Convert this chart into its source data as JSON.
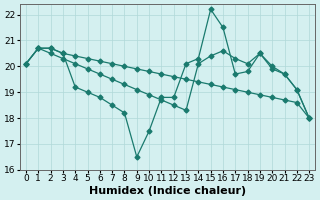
{
  "xlabel": "Humidex (Indice chaleur)",
  "ylabel": "",
  "xlim": [
    -0.5,
    23.5
  ],
  "ylim": [
    16,
    22.4
  ],
  "yticks": [
    16,
    17,
    18,
    19,
    20,
    21,
    22
  ],
  "xticks": [
    0,
    1,
    2,
    3,
    4,
    5,
    6,
    7,
    8,
    9,
    10,
    11,
    12,
    13,
    14,
    15,
    16,
    17,
    18,
    19,
    20,
    21,
    22,
    23
  ],
  "bg_color": "#d4f0f0",
  "line_color": "#1a7a6e",
  "grid_color": "#b0d8d8",
  "lines": [
    {
      "x": [
        0,
        1,
        2,
        3,
        4,
        5,
        6,
        7,
        8,
        9,
        10,
        11,
        12,
        13,
        14,
        15,
        16,
        17,
        18,
        19,
        20,
        21,
        22,
        23
      ],
      "y": [
        20.1,
        20.7,
        20.7,
        20.5,
        20.4,
        20.3,
        20.2,
        20.1,
        20.0,
        19.9,
        19.8,
        19.7,
        19.6,
        19.5,
        19.4,
        19.3,
        19.2,
        19.1,
        19.0,
        18.9,
        18.8,
        18.7,
        18.6,
        18.0
      ]
    },
    {
      "x": [
        0,
        1,
        2,
        3,
        4,
        5,
        6,
        7,
        8,
        9,
        10,
        11,
        12,
        13,
        14,
        15,
        16,
        17,
        18,
        19,
        20,
        21,
        22,
        23
      ],
      "y": [
        20.1,
        20.7,
        20.7,
        20.5,
        19.2,
        19.0,
        18.8,
        18.5,
        18.2,
        16.5,
        17.5,
        18.8,
        18.8,
        20.1,
        20.3,
        22.2,
        21.5,
        19.7,
        19.8,
        20.5,
        20.0,
        19.7,
        19.1,
        18.0
      ]
    },
    {
      "x": [
        0,
        1,
        2,
        3,
        4,
        5,
        6,
        7,
        8,
        9,
        10,
        11,
        12,
        13,
        14,
        15,
        16,
        17,
        18,
        19,
        20,
        21,
        22,
        23
      ],
      "y": [
        20.1,
        20.7,
        20.5,
        20.3,
        20.1,
        19.9,
        19.7,
        19.5,
        19.3,
        19.1,
        18.9,
        18.7,
        18.5,
        18.3,
        20.1,
        20.4,
        20.6,
        20.3,
        20.1,
        20.5,
        19.9,
        19.7,
        19.1,
        18.0
      ]
    }
  ],
  "marker": "D",
  "markersize": 2.5,
  "linewidth": 0.9,
  "xlabel_fontsize": 8,
  "tick_fontsize": 6.5
}
